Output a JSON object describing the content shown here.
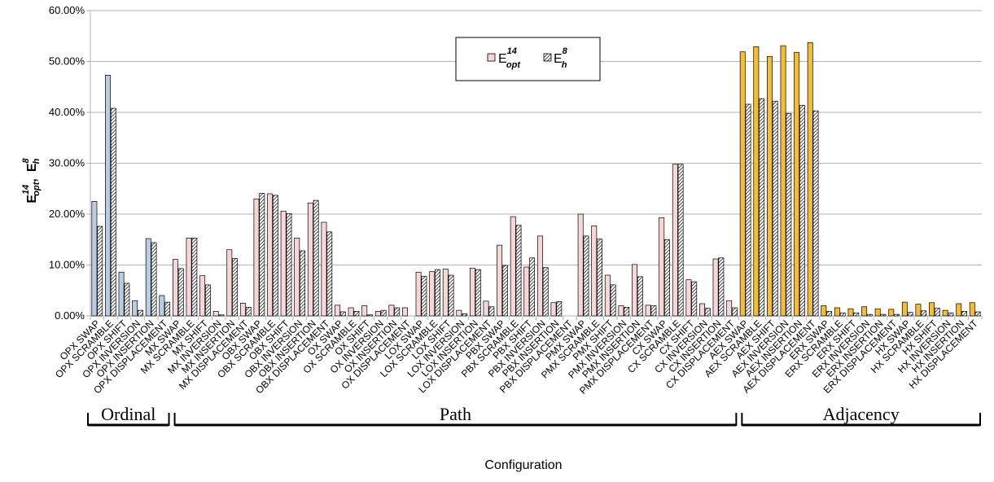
{
  "chart_data": {
    "type": "bar",
    "xlabel": "Configuration",
    "ylabel": {
      "base1": "E",
      "sup1": "14",
      "sub1": "opt",
      "sep": ",",
      "base2": "E",
      "sup2": "8",
      "sub2": "h"
    },
    "ylim": [
      0,
      60
    ],
    "yticks": [
      "0.00%",
      "10.00%",
      "20.00%",
      "30.00%",
      "40.00%",
      "50.00%",
      "60.00%"
    ],
    "grid": true,
    "legend_position": "top-center",
    "legend": [
      {
        "base": "E",
        "sup": "14",
        "sub": "opt"
      },
      {
        "base": "E",
        "sup": "8",
        "sub": "h"
      }
    ],
    "categories": [
      "OPX SWAP",
      "OPX SCRAMBLE",
      "OPX SHIFT",
      "OPX INVERSION",
      "OPX INSERTION",
      "OPX DISPLACEMENT",
      "MX SWAP",
      "MX SCRAMBLE",
      "MX SHIFT",
      "MX INVERSION",
      "MX INSERTION",
      "MX DISPLACEMENT",
      "OBX SWAP",
      "OBX SCRAMBLE",
      "OBX SHIFT",
      "OBX INVERSION",
      "OBX INSERTION",
      "OBX DISPLACEMENT",
      "OX SWAP",
      "OX SCRAMBLE",
      "OX SHIFT",
      "OX INVERSION",
      "OX INSERTION",
      "OX DISPLACEMENT",
      "LOX SWAP",
      "LOX SCRAMBLE",
      "LOX SHIFT",
      "LOX INVERSION",
      "LOX INSERTION",
      "LOX DISPLACEMENT",
      "PBX SWAP",
      "PBX SCRAMBLE",
      "PBX SHIFT",
      "PBX INVERSION",
      "PBX INSERTION",
      "PBX DISPLACEMENT",
      "PMX SWAP",
      "PMX SCRAMBLE",
      "PMX SHIFT",
      "PMX INVERSION",
      "PMX INSERTION",
      "PMX DISPLACEMENT",
      "CX SWAP",
      "CX SCRAMBLE",
      "CX SHIFT",
      "CX INVERSION",
      "CX INSERTION",
      "CX DISPLACEMENT",
      "AEX SWAP",
      "AEX SCRAMBLE",
      "AEX SHIFT",
      "AEX INVERSION",
      "AEX INSERTION",
      "AEX DISPLACEMENT",
      "ERX SWAP",
      "ERX SCRAMBLE",
      "ERX SHIFT",
      "ERX INVERSION",
      "ERX INSERTION",
      "ERX DISPLACEMENT",
      "HX SWAP",
      "HX SCRAMBLE",
      "HX SHIFT",
      "HX INVERSION",
      "HX INSERTION",
      "HX DISPLACEMENT"
    ],
    "series": [
      {
        "values": [
          22.5,
          47.3,
          8.6,
          3.0,
          15.2,
          4.0,
          11.1,
          15.3,
          7.9,
          0.9,
          13.0,
          2.5,
          23.0,
          24.0,
          20.6,
          15.3,
          22.2,
          18.4,
          2.1,
          1.6,
          2.0,
          0.9,
          2.1,
          1.6,
          8.6,
          8.7,
          9.2,
          1.1,
          9.4,
          2.9,
          13.9,
          19.5,
          9.6,
          15.7,
          2.6,
          0.0,
          20.0,
          17.7,
          8.0,
          2.0,
          10.1,
          2.1,
          19.3,
          29.8,
          7.1,
          2.4,
          11.2,
          3.0,
          51.9,
          52.9,
          51.0,
          53.1,
          51.8,
          53.7,
          2.0,
          1.6,
          1.4,
          1.8,
          1.4,
          1.3,
          2.7,
          2.3,
          2.6,
          1.1,
          2.4,
          2.6
        ]
      },
      {
        "values": [
          17.6,
          40.8,
          6.4,
          1.1,
          14.4,
          2.7,
          9.3,
          15.3,
          6.1,
          0.2,
          11.3,
          1.7,
          24.1,
          23.7,
          20.1,
          12.8,
          22.7,
          16.5,
          0.8,
          0.9,
          0.2,
          1.1,
          1.6,
          0.0,
          7.8,
          9.1,
          8.0,
          0.4,
          9.1,
          1.8,
          9.9,
          17.8,
          11.4,
          9.5,
          2.8,
          0.0,
          15.7,
          15.1,
          6.1,
          1.7,
          7.7,
          2.0,
          15.0,
          29.8,
          6.7,
          1.5,
          11.4,
          1.6,
          41.6,
          42.7,
          42.2,
          39.8,
          41.4,
          40.3,
          0.9,
          0.6,
          0.6,
          0.3,
          0.3,
          0.3,
          0.7,
          1.0,
          1.5,
          0.6,
          0.9,
          0.8
        ]
      }
    ],
    "groups": [
      {
        "label": "Ordinal",
        "count": 6
      },
      {
        "label": "Path",
        "count": 42
      },
      {
        "label": "Adjacency",
        "count": 18
      }
    ],
    "colors": {
      "ordinal": "#b9cde0",
      "path": "#f9d6d6",
      "adjacency": "#f6bd33",
      "hatch": "#000000",
      "grid": "#b3b3b3",
      "axis": "#b3b3b3"
    }
  }
}
